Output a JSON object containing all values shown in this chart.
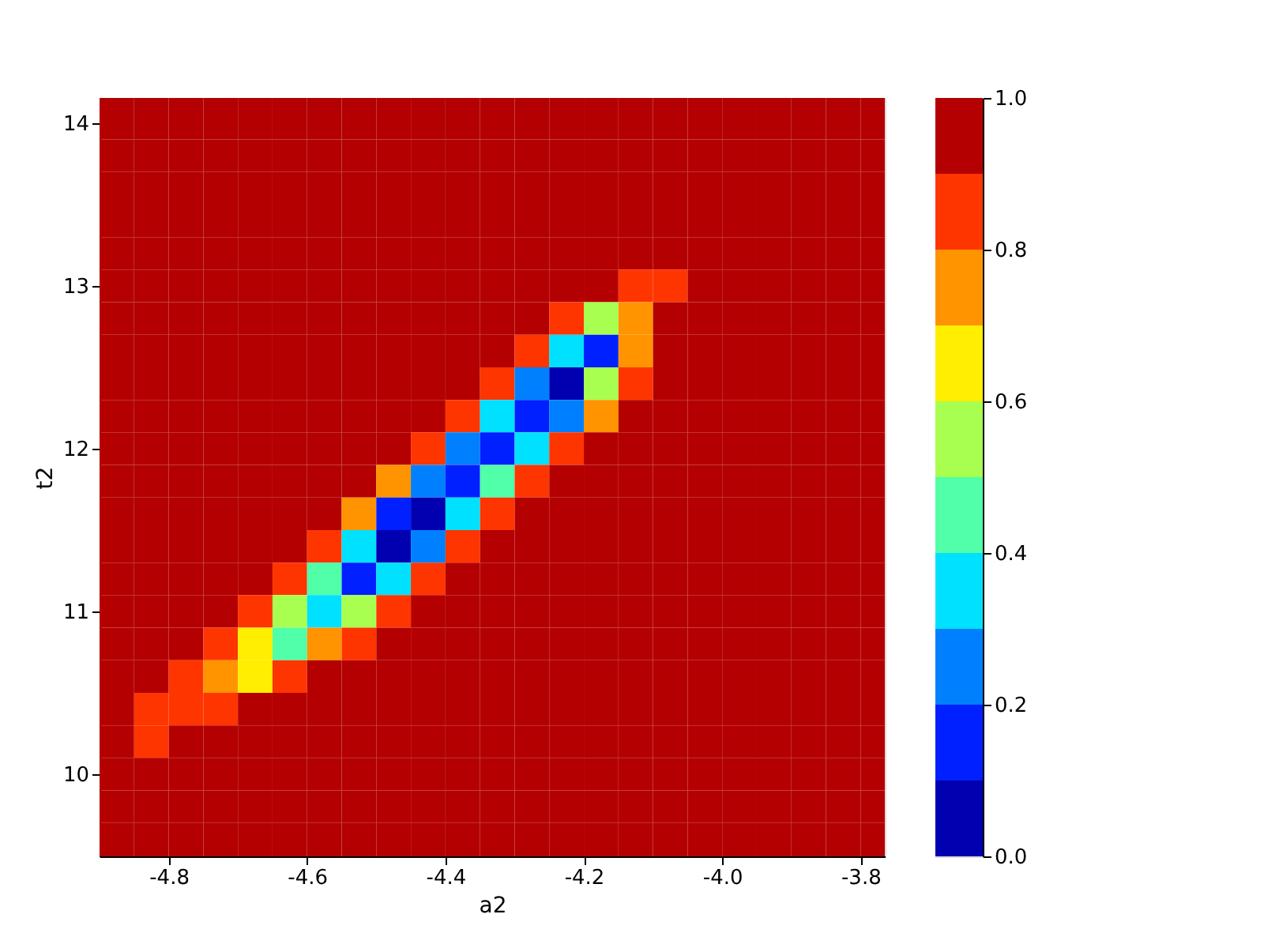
{
  "chart_data": {
    "type": "heatmap",
    "xlabel": "a2",
    "ylabel": "t2",
    "x": [
      -4.875,
      -4.825,
      -4.775,
      -4.725,
      -4.675,
      -4.625,
      -4.575,
      -4.525,
      -4.475,
      -4.425,
      -4.375,
      -4.325,
      -4.275,
      -4.225,
      -4.175,
      -4.125,
      -4.075,
      -4.025,
      -3.975,
      -3.925,
      -3.875,
      -3.825,
      -3.775
    ],
    "y": [
      14.0,
      13.8,
      13.6,
      13.4,
      13.2,
      13.0,
      12.8,
      12.6,
      12.4,
      12.2,
      12.0,
      11.8,
      11.6,
      11.4,
      11.2,
      11.0,
      10.8,
      10.6,
      10.4,
      10.2,
      10.0,
      9.8,
      9.6
    ],
    "xlim": [
      -4.9,
      -3.765
    ],
    "ylim": [
      9.495,
      14.155
    ],
    "xticks": [
      {
        "value": -4.8,
        "label": "-4.8"
      },
      {
        "value": -4.6,
        "label": "-4.6"
      },
      {
        "value": -4.4,
        "label": "-4.4"
      },
      {
        "value": -4.2,
        "label": "-4.2"
      },
      {
        "value": -4.0,
        "label": "-4.0"
      },
      {
        "value": -3.8,
        "label": "-3.8"
      }
    ],
    "yticks": [
      10,
      11,
      12,
      13,
      14
    ],
    "clim": [
      0,
      1
    ],
    "cticks": [
      {
        "value": 0,
        "label": "0.0"
      },
      {
        "value": 0.2,
        "label": "0.2"
      },
      {
        "value": 0.4,
        "label": "0.4"
      },
      {
        "value": 0.6,
        "label": "0.6"
      },
      {
        "value": 0.8,
        "label": "0.8"
      },
      {
        "value": 1,
        "label": "1.0"
      }
    ],
    "colors": [
      "#0000b0",
      "#0020ff",
      "#0080ff",
      "#00e0ff",
      "#50ffa8",
      "#a8ff50",
      "#ffee00",
      "#ff9400",
      "#ff3500",
      "#b40000"
    ],
    "grid": false,
    "legend": false,
    "cells": [
      [
        0.95,
        0.95,
        0.95,
        0.95,
        0.95,
        0.95,
        0.95,
        0.95,
        0.95,
        0.95,
        0.95,
        0.95,
        0.95,
        0.95,
        0.95,
        0.95,
        0.95,
        0.95,
        0.95,
        0.95,
        0.95,
        0.95,
        0.95
      ],
      [
        0.95,
        0.95,
        0.95,
        0.95,
        0.95,
        0.95,
        0.95,
        0.95,
        0.95,
        0.95,
        0.95,
        0.95,
        0.95,
        0.95,
        0.95,
        0.95,
        0.95,
        0.95,
        0.95,
        0.95,
        0.95,
        0.95,
        0.95
      ],
      [
        0.95,
        0.95,
        0.95,
        0.95,
        0.95,
        0.95,
        0.95,
        0.95,
        0.95,
        0.95,
        0.95,
        0.95,
        0.95,
        0.95,
        0.95,
        0.95,
        0.95,
        0.95,
        0.95,
        0.95,
        0.95,
        0.95,
        0.95
      ],
      [
        0.95,
        0.95,
        0.95,
        0.95,
        0.95,
        0.95,
        0.95,
        0.95,
        0.95,
        0.95,
        0.95,
        0.95,
        0.95,
        0.95,
        0.95,
        0.95,
        0.95,
        0.95,
        0.95,
        0.95,
        0.95,
        0.95,
        0.95
      ],
      [
        0.95,
        0.95,
        0.95,
        0.95,
        0.95,
        0.95,
        0.95,
        0.95,
        0.95,
        0.95,
        0.95,
        0.95,
        0.95,
        0.95,
        0.95,
        0.95,
        0.95,
        0.95,
        0.95,
        0.95,
        0.95,
        0.95,
        0.95
      ],
      [
        0.95,
        0.95,
        0.95,
        0.95,
        0.95,
        0.95,
        0.95,
        0.95,
        0.95,
        0.95,
        0.95,
        0.95,
        0.95,
        0.95,
        0.95,
        0.85,
        0.85,
        0.95,
        0.95,
        0.95,
        0.95,
        0.95,
        0.95
      ],
      [
        0.95,
        0.95,
        0.95,
        0.95,
        0.95,
        0.95,
        0.95,
        0.95,
        0.95,
        0.95,
        0.95,
        0.95,
        0.95,
        0.85,
        0.55,
        0.75,
        0.95,
        0.95,
        0.95,
        0.95,
        0.95,
        0.95,
        0.95
      ],
      [
        0.95,
        0.95,
        0.95,
        0.95,
        0.95,
        0.95,
        0.95,
        0.95,
        0.95,
        0.95,
        0.95,
        0.95,
        0.85,
        0.35,
        0.15,
        0.75,
        0.95,
        0.95,
        0.95,
        0.95,
        0.95,
        0.95,
        0.95
      ],
      [
        0.95,
        0.95,
        0.95,
        0.95,
        0.95,
        0.95,
        0.95,
        0.95,
        0.95,
        0.95,
        0.95,
        0.85,
        0.25,
        0.05,
        0.55,
        0.85,
        0.95,
        0.95,
        0.95,
        0.95,
        0.95,
        0.95,
        0.95
      ],
      [
        0.95,
        0.95,
        0.95,
        0.95,
        0.95,
        0.95,
        0.95,
        0.95,
        0.95,
        0.95,
        0.85,
        0.35,
        0.15,
        0.25,
        0.75,
        0.95,
        0.95,
        0.95,
        0.95,
        0.95,
        0.95,
        0.95,
        0.95
      ],
      [
        0.95,
        0.95,
        0.95,
        0.95,
        0.95,
        0.95,
        0.95,
        0.95,
        0.95,
        0.85,
        0.25,
        0.15,
        0.35,
        0.85,
        0.95,
        0.95,
        0.95,
        0.95,
        0.95,
        0.95,
        0.95,
        0.95,
        0.95
      ],
      [
        0.95,
        0.95,
        0.95,
        0.95,
        0.95,
        0.95,
        0.95,
        0.95,
        0.75,
        0.25,
        0.15,
        0.45,
        0.85,
        0.95,
        0.95,
        0.95,
        0.95,
        0.95,
        0.95,
        0.95,
        0.95,
        0.95,
        0.95
      ],
      [
        0.95,
        0.95,
        0.95,
        0.95,
        0.95,
        0.95,
        0.95,
        0.75,
        0.15,
        0.05,
        0.35,
        0.85,
        0.95,
        0.95,
        0.95,
        0.95,
        0.95,
        0.95,
        0.95,
        0.95,
        0.95,
        0.95,
        0.95
      ],
      [
        0.95,
        0.95,
        0.95,
        0.95,
        0.95,
        0.95,
        0.85,
        0.35,
        0.05,
        0.25,
        0.85,
        0.95,
        0.95,
        0.95,
        0.95,
        0.95,
        0.95,
        0.95,
        0.95,
        0.95,
        0.95,
        0.95,
        0.95
      ],
      [
        0.95,
        0.95,
        0.95,
        0.95,
        0.95,
        0.85,
        0.45,
        0.15,
        0.35,
        0.85,
        0.95,
        0.95,
        0.95,
        0.95,
        0.95,
        0.95,
        0.95,
        0.95,
        0.95,
        0.95,
        0.95,
        0.95,
        0.95
      ],
      [
        0.95,
        0.95,
        0.95,
        0.95,
        0.85,
        0.55,
        0.35,
        0.55,
        0.85,
        0.95,
        0.95,
        0.95,
        0.95,
        0.95,
        0.95,
        0.95,
        0.95,
        0.95,
        0.95,
        0.95,
        0.95,
        0.95,
        0.95
      ],
      [
        0.95,
        0.95,
        0.95,
        0.85,
        0.65,
        0.45,
        0.75,
        0.85,
        0.95,
        0.95,
        0.95,
        0.95,
        0.95,
        0.95,
        0.95,
        0.95,
        0.95,
        0.95,
        0.95,
        0.95,
        0.95,
        0.95,
        0.95
      ],
      [
        0.95,
        0.95,
        0.85,
        0.75,
        0.65,
        0.85,
        0.95,
        0.95,
        0.95,
        0.95,
        0.95,
        0.95,
        0.95,
        0.95,
        0.95,
        0.95,
        0.95,
        0.95,
        0.95,
        0.95,
        0.95,
        0.95,
        0.95
      ],
      [
        0.95,
        0.85,
        0.85,
        0.85,
        0.95,
        0.95,
        0.95,
        0.95,
        0.95,
        0.95,
        0.95,
        0.95,
        0.95,
        0.95,
        0.95,
        0.95,
        0.95,
        0.95,
        0.95,
        0.95,
        0.95,
        0.95,
        0.95
      ],
      [
        0.95,
        0.85,
        0.95,
        0.95,
        0.95,
        0.95,
        0.95,
        0.95,
        0.95,
        0.95,
        0.95,
        0.95,
        0.95,
        0.95,
        0.95,
        0.95,
        0.95,
        0.95,
        0.95,
        0.95,
        0.95,
        0.95,
        0.95
      ],
      [
        0.95,
        0.95,
        0.95,
        0.95,
        0.95,
        0.95,
        0.95,
        0.95,
        0.95,
        0.95,
        0.95,
        0.95,
        0.95,
        0.95,
        0.95,
        0.95,
        0.95,
        0.95,
        0.95,
        0.95,
        0.95,
        0.95,
        0.95
      ],
      [
        0.95,
        0.95,
        0.95,
        0.95,
        0.95,
        0.95,
        0.95,
        0.95,
        0.95,
        0.95,
        0.95,
        0.95,
        0.95,
        0.95,
        0.95,
        0.95,
        0.95,
        0.95,
        0.95,
        0.95,
        0.95,
        0.95,
        0.95
      ],
      [
        0.95,
        0.95,
        0.95,
        0.95,
        0.95,
        0.95,
        0.95,
        0.95,
        0.95,
        0.95,
        0.95,
        0.95,
        0.95,
        0.95,
        0.95,
        0.95,
        0.95,
        0.95,
        0.95,
        0.95,
        0.95,
        0.95,
        0.95
      ]
    ]
  }
}
